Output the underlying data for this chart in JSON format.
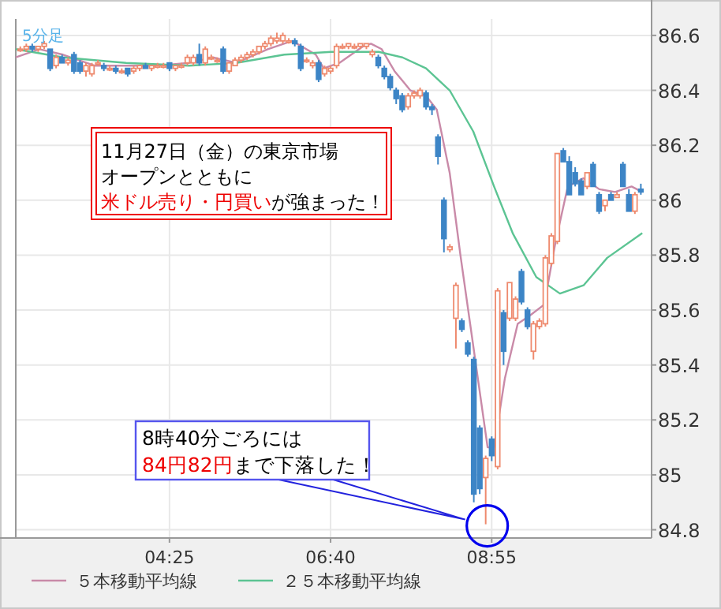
{
  "chart_data": {
    "type": "candlestick",
    "x": [
      2.333,
      2.417,
      2.5,
      2.583,
      2.667,
      2.75,
      2.833,
      2.917,
      3,
      3.083,
      3.167,
      3.25,
      3.333,
      3.417,
      3.5,
      3.583,
      3.667,
      3.75,
      3.833,
      3.917,
      4,
      4.083,
      4.167,
      4.25,
      4.333,
      4.417,
      4.5,
      4.583,
      4.667,
      4.75,
      4.833,
      4.917,
      5,
      5.083,
      5.167,
      5.25,
      5.333,
      5.417,
      5.5,
      5.583,
      5.667,
      5.75,
      5.833,
      5.917,
      6,
      6.083,
      6.167,
      6.25,
      6.333,
      6.417,
      6.5,
      6.583,
      6.667,
      6.75,
      6.833,
      6.917,
      7,
      7.083,
      7.167,
      7.25,
      7.333,
      7.417,
      7.5,
      7.583,
      7.667,
      7.75,
      7.833,
      7.917,
      8,
      8.083,
      8.167,
      8.25,
      8.333,
      8.417,
      8.5,
      8.583,
      8.667,
      8.75,
      8.833,
      8.917,
      9,
      9.083,
      9.167,
      9.25,
      9.333,
      9.417,
      9.5,
      9.583,
      9.667,
      9.75,
      9.833,
      9.917,
      10,
      10.083,
      10.167,
      10.25,
      10.333,
      10.417,
      10.5,
      10.583,
      10.667,
      10.75,
      10.833,
      10.917,
      11
    ],
    "ohlc": [
      [
        86.55,
        86.56,
        86.54,
        86.55
      ],
      [
        86.55,
        86.57,
        86.54,
        86.56
      ],
      [
        86.56,
        86.57,
        86.54,
        86.55
      ],
      [
        86.55,
        86.56,
        86.54,
        86.56
      ],
      [
        86.56,
        86.58,
        86.55,
        86.57
      ],
      [
        86.55,
        86.55,
        86.47,
        86.48
      ],
      [
        86.49,
        86.53,
        86.48,
        86.52
      ],
      [
        86.52,
        86.53,
        86.5,
        86.5
      ],
      [
        86.5,
        86.52,
        86.49,
        86.51
      ],
      [
        86.53,
        86.54,
        86.46,
        86.47
      ],
      [
        86.5,
        86.51,
        86.46,
        86.47
      ],
      [
        86.47,
        86.5,
        86.45,
        86.49
      ],
      [
        86.46,
        86.5,
        86.45,
        86.49
      ],
      [
        86.5,
        86.51,
        86.49,
        86.5
      ],
      [
        86.49,
        86.5,
        86.47,
        86.48
      ],
      [
        86.48,
        86.49,
        86.47,
        86.48
      ],
      [
        86.48,
        86.49,
        86.46,
        86.47
      ],
      [
        86.47,
        86.48,
        86.46,
        86.47
      ],
      [
        86.48,
        86.48,
        86.45,
        86.46
      ],
      [
        86.47,
        86.49,
        86.46,
        86.48
      ],
      [
        86.48,
        86.49,
        86.47,
        86.49
      ],
      [
        86.49,
        86.5,
        86.48,
        86.48
      ],
      [
        86.48,
        86.49,
        86.47,
        86.49
      ],
      [
        86.49,
        86.5,
        86.48,
        86.49
      ],
      [
        86.49,
        86.5,
        86.48,
        86.49
      ],
      [
        86.5,
        86.5,
        86.47,
        86.48
      ],
      [
        86.48,
        86.49,
        86.47,
        86.49
      ],
      [
        86.49,
        86.5,
        86.48,
        86.49
      ],
      [
        86.5,
        86.53,
        86.49,
        86.52
      ],
      [
        86.5,
        86.53,
        86.49,
        86.52
      ],
      [
        86.53,
        86.57,
        86.49,
        86.5
      ],
      [
        86.5,
        86.56,
        86.49,
        86.55
      ],
      [
        86.52,
        86.53,
        86.51,
        86.52
      ],
      [
        86.51,
        86.52,
        86.5,
        86.51
      ],
      [
        86.55,
        86.56,
        86.46,
        86.47
      ],
      [
        86.47,
        86.5,
        86.46,
        86.5
      ],
      [
        86.49,
        86.52,
        86.49,
        86.51
      ],
      [
        86.51,
        86.53,
        86.5,
        86.52
      ],
      [
        86.52,
        86.54,
        86.51,
        86.53
      ],
      [
        86.53,
        86.55,
        86.52,
        86.54
      ],
      [
        86.54,
        86.56,
        86.53,
        86.56
      ],
      [
        86.56,
        86.58,
        86.55,
        86.57
      ],
      [
        86.57,
        86.6,
        86.56,
        86.59
      ],
      [
        86.58,
        86.61,
        86.57,
        86.59
      ],
      [
        86.58,
        86.61,
        86.57,
        86.6
      ],
      [
        86.58,
        86.59,
        86.57,
        86.58
      ],
      [
        86.58,
        86.59,
        86.56,
        86.57
      ],
      [
        86.56,
        86.57,
        86.47,
        86.48
      ],
      [
        86.51,
        86.52,
        86.5,
        86.51
      ],
      [
        86.49,
        86.51,
        86.48,
        86.5
      ],
      [
        86.5,
        86.51,
        86.43,
        86.44
      ],
      [
        86.46,
        86.49,
        86.45,
        86.48
      ],
      [
        86.47,
        86.49,
        86.46,
        86.48
      ],
      [
        86.49,
        86.57,
        86.48,
        86.56
      ],
      [
        86.56,
        86.57,
        86.55,
        86.56
      ],
      [
        86.56,
        86.57,
        86.55,
        86.57
      ],
      [
        86.56,
        86.57,
        86.55,
        86.56
      ],
      [
        86.56,
        86.57,
        86.55,
        86.57
      ],
      [
        86.56,
        86.57,
        86.55,
        86.57
      ],
      [
        86.53,
        86.55,
        86.52,
        86.54
      ],
      [
        86.52,
        86.53,
        86.48,
        86.49
      ],
      [
        86.48,
        86.49,
        86.44,
        86.45
      ],
      [
        86.45,
        86.46,
        86.4,
        86.41
      ],
      [
        86.4,
        86.41,
        86.35,
        86.37
      ],
      [
        86.38,
        86.39,
        86.32,
        86.33
      ],
      [
        86.34,
        86.39,
        86.33,
        86.38
      ],
      [
        86.38,
        86.4,
        86.37,
        86.39
      ],
      [
        86.38,
        86.41,
        86.37,
        86.4
      ],
      [
        86.39,
        86.4,
        86.33,
        86.34
      ],
      [
        86.34,
        86.35,
        86.31,
        86.33
      ],
      [
        86.23,
        86.24,
        86.13,
        86.16
      ],
      [
        86,
        86.01,
        85.81,
        85.86
      ],
      [
        85.82,
        85.84,
        85.81,
        85.83
      ],
      [
        85.57,
        85.7,
        85.46,
        85.69
      ],
      [
        85.56,
        85.57,
        85.52,
        85.53
      ],
      [
        85.48,
        85.49,
        85.43,
        85.44
      ],
      [
        85.42,
        85.43,
        84.9,
        84.93
      ],
      [
        85.17,
        85.18,
        84.93,
        84.95
      ],
      [
        84.99,
        85.07,
        84.82,
        85.06
      ],
      [
        85.13,
        85.14,
        85.05,
        85.07
      ],
      [
        85.03,
        85.68,
        85.02,
        85.67
      ],
      [
        85.59,
        85.6,
        85.4,
        85.45
      ],
      [
        85.57,
        85.7,
        85.56,
        85.7
      ],
      [
        85.57,
        85.65,
        85.56,
        85.64
      ],
      [
        85.74,
        85.75,
        85.62,
        85.63
      ],
      [
        85.6,
        85.61,
        85.53,
        85.54
      ],
      [
        85.45,
        85.56,
        85.42,
        85.55
      ],
      [
        85.54,
        85.57,
        85.53,
        85.56
      ],
      [
        85.55,
        85.8,
        85.54,
        85.79
      ],
      [
        85.77,
        85.88,
        85.76,
        85.87
      ],
      [
        85.85,
        86.17,
        85.84,
        86.17
      ],
      [
        86.18,
        86.19,
        86.14,
        86.14
      ],
      [
        86.14,
        86.16,
        86.02,
        86.02
      ],
      [
        86.1,
        86.12,
        86.05,
        86.06
      ],
      [
        86.07,
        86.08,
        86.02,
        86.02
      ],
      [
        86.05,
        86.1,
        86.04,
        86.1
      ],
      [
        86.13,
        86.14,
        86.05,
        86.05
      ],
      [
        86.02,
        86.03,
        85.95,
        85.96
      ],
      [
        85.98,
        86,
        85.96,
        86
      ],
      [
        86.02,
        86.03,
        86,
        86
      ],
      [
        86.01,
        86.03,
        86.01,
        86.02
      ],
      [
        86.13,
        86.14,
        86.05,
        86.05
      ],
      [
        86.02,
        86.04,
        85.96,
        85.96
      ],
      [
        85.96,
        86.03,
        85.95,
        86.02
      ],
      [
        86.04,
        86.06,
        86.02,
        86.03
      ]
    ],
    "series": [
      {
        "type": "line",
        "name": "５本移動平均線",
        "color": "#c98aa8",
        "x": [
          2.27,
          2.6,
          2.93,
          3.37,
          3.81,
          4.25,
          4.69,
          5.02,
          5.35,
          5.79,
          6.13,
          6.46,
          6.57,
          6.79,
          7.12,
          7.23,
          7.38,
          7.56,
          7.78,
          8,
          8.15,
          8.33,
          8.48,
          8.86,
          8.95,
          9.1,
          9.28,
          9.45,
          9.65,
          9.81,
          9.98,
          10.2,
          10.42,
          10.64,
          10.87,
          11.02
        ],
        "values": [
          86.52,
          86.55,
          86.53,
          86.49,
          86.49,
          86.49,
          86.5,
          86.52,
          86.5,
          86.55,
          86.58,
          86.53,
          86.48,
          86.5,
          86.56,
          86.57,
          86.55,
          86.47,
          86.4,
          86.38,
          86.33,
          86.1,
          85.8,
          85.1,
          85.1,
          85.35,
          85.55,
          85.58,
          85.62,
          85.85,
          86.05,
          86.08,
          86.04,
          86.03,
          86.05,
          86.03
        ]
      },
      {
        "type": "line",
        "name": "２５本移動平均線",
        "color": "#5cc493",
        "x": [
          2.27,
          2.93,
          3.81,
          4.69,
          5.35,
          6.02,
          6.68,
          7.34,
          7.67,
          8,
          8.33,
          8.66,
          8.95,
          9.21,
          9.54,
          9.87,
          10.2,
          10.53,
          11.02
        ],
        "values": [
          86.55,
          86.52,
          86.5,
          86.49,
          86.5,
          86.53,
          86.54,
          86.54,
          86.52,
          86.48,
          86.4,
          86.25,
          86.05,
          85.88,
          85.72,
          85.66,
          85.69,
          85.79,
          85.88
        ]
      }
    ],
    "xlim": [
      2.27,
      11.15
    ],
    "xticks": [
      {
        "value": 4.4167,
        "label": "04:25"
      },
      {
        "value": 6.6667,
        "label": "06:40"
      },
      {
        "value": 8.9167,
        "label": "08:55"
      }
    ],
    "ylim": [
      84.77,
      86.66
    ],
    "yticks": [
      84.8,
      85,
      85.2,
      85.4,
      85.6,
      85.8,
      86,
      86.2,
      86.4,
      86.6
    ],
    "grid": true,
    "legend": "bottom",
    "annotations": [
      "5分足",
      "11月27日（金）の東京市場",
      "オープンとともに",
      "米ドル売り・円買い",
      "が強まった！",
      "8時40分ごろには",
      "84円82円",
      "まで下落した！"
    ]
  }
}
